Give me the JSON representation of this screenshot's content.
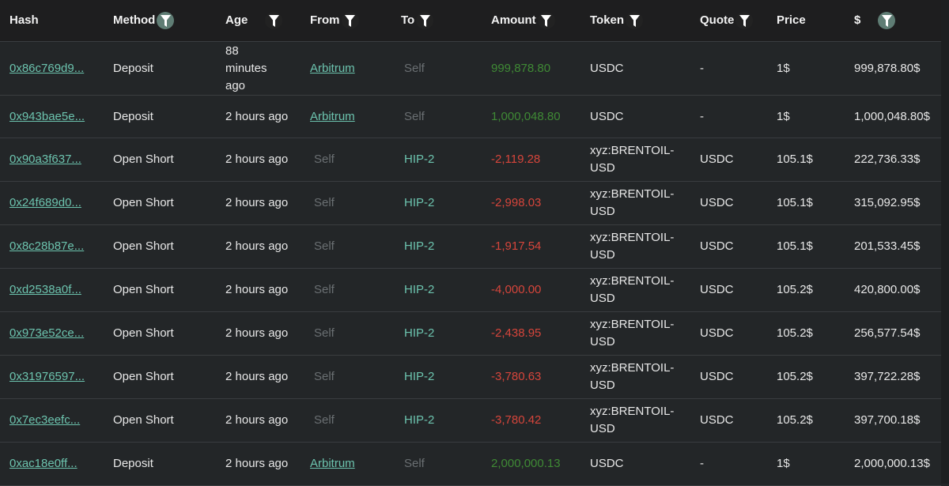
{
  "colors": {
    "link": "#6cc3ae",
    "positive": "#3f8a35",
    "negative": "#d6453b",
    "muted": "#6a6f72",
    "filter_active": "#5f7d74"
  },
  "headers": [
    {
      "label": "Hash",
      "filter": "none"
    },
    {
      "label": "Method",
      "filter": "active"
    },
    {
      "label": "Age",
      "filter": "inactive"
    },
    {
      "label": "From",
      "filter": "inactive"
    },
    {
      "label": "To",
      "filter": "inactive"
    },
    {
      "label": "Amount",
      "filter": "inactive"
    },
    {
      "label": "Token",
      "filter": "inactive"
    },
    {
      "label": "Quote",
      "filter": "inactive"
    },
    {
      "label": "Price",
      "filter": "none"
    },
    {
      "label": "$",
      "filter": "active"
    }
  ],
  "rows": [
    {
      "hash": "0x86c769d9...",
      "method": "Deposit",
      "age": "88 minutes ago",
      "from": "Arbitrum",
      "to": "Self",
      "amount": "999,878.80",
      "token": "USDC",
      "quote": "-",
      "price": "1$",
      "usd": "999,878.80$"
    },
    {
      "hash": "0x943bae5e...",
      "method": "Deposit",
      "age": "2 hours ago",
      "from": "Arbitrum",
      "to": "Self",
      "amount": "1,000,048.80",
      "token": "USDC",
      "quote": "-",
      "price": "1$",
      "usd": "1,000,048.80$"
    },
    {
      "hash": "0x90a3f637...",
      "method": "Open Short",
      "age": "2 hours ago",
      "from": "Self",
      "to": "HIP-2",
      "amount": "-2,119.28",
      "token": "xyz:BRENTOIL-USD",
      "quote": "USDC",
      "price": "105.1$",
      "usd": "222,736.33$"
    },
    {
      "hash": "0x24f689d0...",
      "method": "Open Short",
      "age": "2 hours ago",
      "from": "Self",
      "to": "HIP-2",
      "amount": "-2,998.03",
      "token": "xyz:BRENTOIL-USD",
      "quote": "USDC",
      "price": "105.1$",
      "usd": "315,092.95$"
    },
    {
      "hash": "0x8c28b87e...",
      "method": "Open Short",
      "age": "2 hours ago",
      "from": "Self",
      "to": "HIP-2",
      "amount": "-1,917.54",
      "token": "xyz:BRENTOIL-USD",
      "quote": "USDC",
      "price": "105.1$",
      "usd": "201,533.45$"
    },
    {
      "hash": "0xd2538a0f...",
      "method": "Open Short",
      "age": "2 hours ago",
      "from": "Self",
      "to": "HIP-2",
      "amount": "-4,000.00",
      "token": "xyz:BRENTOIL-USD",
      "quote": "USDC",
      "price": "105.2$",
      "usd": "420,800.00$"
    },
    {
      "hash": "0x973e52ce...",
      "method": "Open Short",
      "age": "2 hours ago",
      "from": "Self",
      "to": "HIP-2",
      "amount": "-2,438.95",
      "token": "xyz:BRENTOIL-USD",
      "quote": "USDC",
      "price": "105.2$",
      "usd": "256,577.54$"
    },
    {
      "hash": "0x31976597...",
      "method": "Open Short",
      "age": "2 hours ago",
      "from": "Self",
      "to": "HIP-2",
      "amount": "-3,780.63",
      "token": "xyz:BRENTOIL-USD",
      "quote": "USDC",
      "price": "105.2$",
      "usd": "397,722.28$"
    },
    {
      "hash": "0x7ec3eefc...",
      "method": "Open Short",
      "age": "2 hours ago",
      "from": "Self",
      "to": "HIP-2",
      "amount": "-3,780.42",
      "token": "xyz:BRENTOIL-USD",
      "quote": "USDC",
      "price": "105.2$",
      "usd": "397,700.18$"
    },
    {
      "hash": "0xac18e0ff...",
      "method": "Deposit",
      "age": "2 hours ago",
      "from": "Arbitrum",
      "to": "Self",
      "amount": "2,000,000.13",
      "token": "USDC",
      "quote": "-",
      "price": "1$",
      "usd": "2,000,000.13$"
    }
  ]
}
